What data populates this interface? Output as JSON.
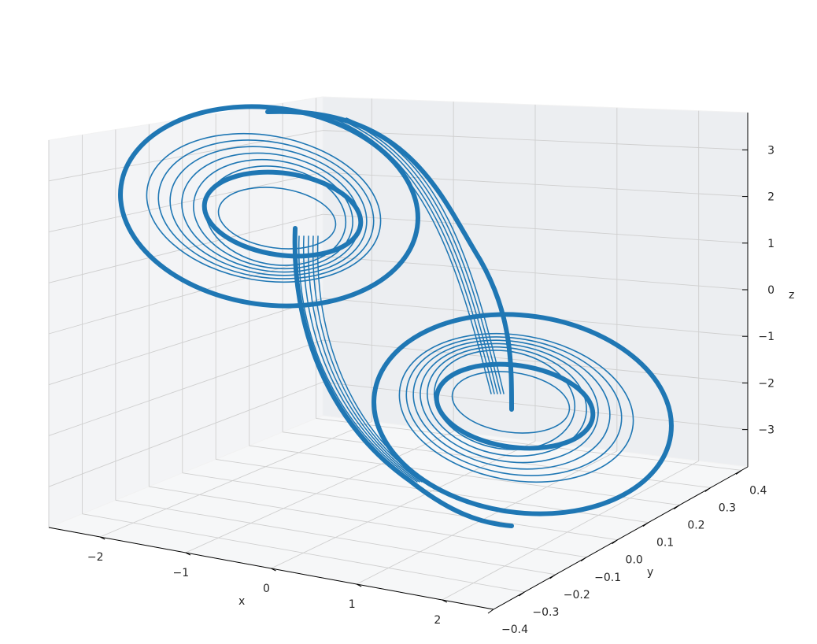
{
  "chart_data": {
    "type": "line",
    "projection": "3d",
    "title": "",
    "xlabel": "x",
    "ylabel": "y",
    "zlabel": "z",
    "xlim": [
      -2.6,
      2.6
    ],
    "ylim": [
      -0.4,
      0.42
    ],
    "zlim": [
      -3.8,
      3.8
    ],
    "x_ticks": [
      -2,
      -1,
      0,
      1,
      2
    ],
    "x_tick_labels": [
      "−2",
      "−1",
      "0",
      "1",
      "2"
    ],
    "y_ticks": [
      -0.4,
      -0.3,
      -0.2,
      -0.1,
      0.0,
      0.1,
      0.2,
      0.3,
      0.4
    ],
    "y_tick_labels": [
      "−0.4",
      "−0.3",
      "−0.2",
      "−0.1",
      "0.0",
      "0.1",
      "0.2",
      "0.3",
      "0.4"
    ],
    "z_ticks": [
      -3,
      -2,
      -1,
      0,
      1,
      2,
      3
    ],
    "z_tick_labels": [
      "−3",
      "−2",
      "−1",
      "0",
      "1",
      "2",
      "3"
    ],
    "grid": true,
    "series": [
      {
        "color": "#1f77b4",
        "description_points": {
          "upper_lobe_center": [
            -1.2,
            0.0,
            1.8
          ],
          "lower_lobe_center": [
            1.2,
            0.0,
            -1.8
          ],
          "outer_radius": 1.6,
          "inner_radius": 0.6
        }
      }
    ]
  }
}
